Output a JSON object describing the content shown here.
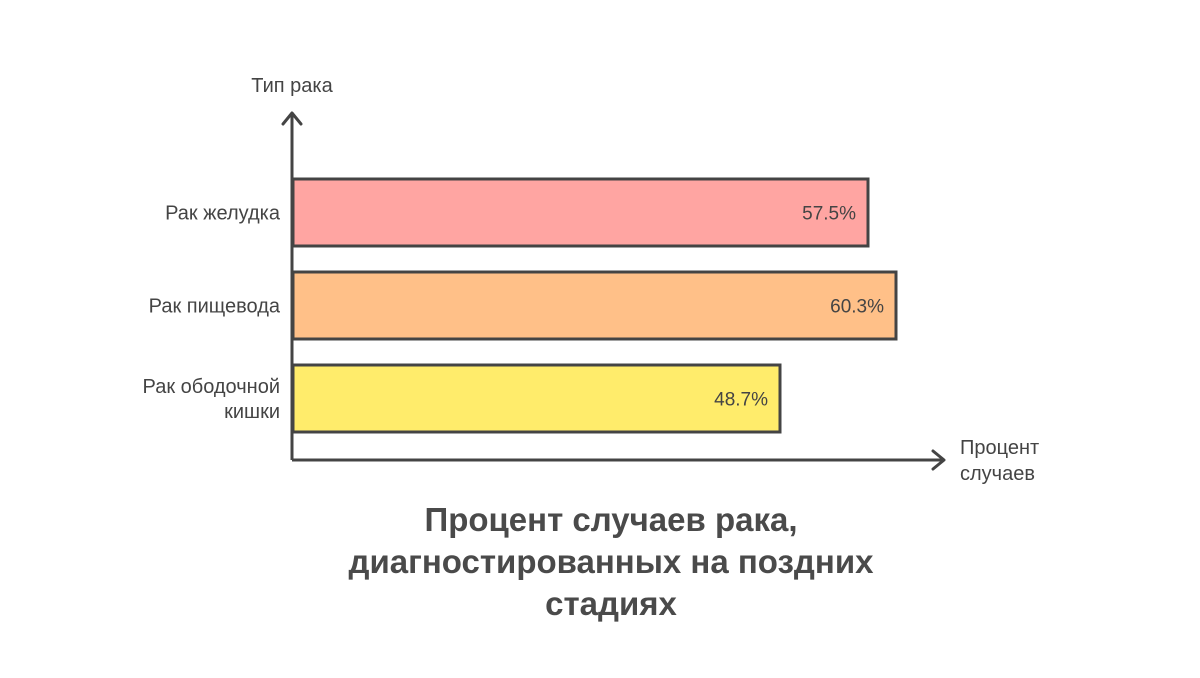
{
  "chart_data": {
    "type": "bar",
    "orientation": "horizontal",
    "title": "Процент случаев рака, диагностированных на поздних стадиях",
    "title_lines": [
      "Процент случаев рака,",
      "диагностированных на поздних",
      "стадиях"
    ],
    "ylabel": "Тип рака",
    "xlabel": "Процент случаев",
    "xlabel_lines": [
      "Процент",
      "случаев"
    ],
    "categories": [
      "Рак желудка",
      "Рак пищевода",
      "Рак ободочной кишки"
    ],
    "category_lines": [
      [
        "Рак желудка"
      ],
      [
        "Рак пищевода"
      ],
      [
        "Рак ободочной",
        "кишки"
      ]
    ],
    "values": [
      57.5,
      60.3,
      48.7
    ],
    "value_labels": [
      "57.5%",
      "60.3%",
      "48.7%"
    ],
    "colors": [
      "#ffa5a2",
      "#ffc088",
      "#ffec6b"
    ],
    "edge_color": "#444444",
    "xlim": [
      0,
      80
    ],
    "grid": false,
    "legend": "none"
  }
}
